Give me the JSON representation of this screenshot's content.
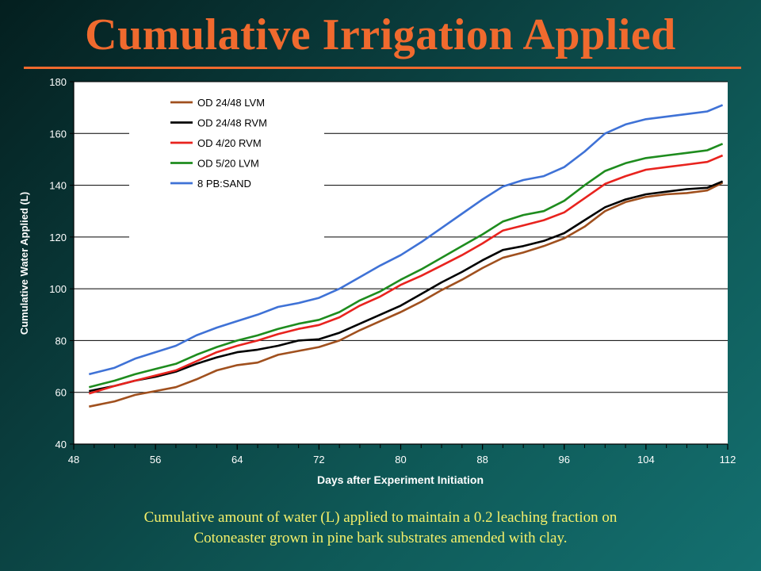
{
  "slide": {
    "title": "Cumulative Irrigation Applied",
    "caption_line1": "Cumulative amount of water (L) applied to maintain a 0.2 leaching fraction on",
    "caption_line2": "Cotoneaster grown in pine bark substrates amended with clay."
  },
  "colors": {
    "title": "#f06a2e",
    "caption": "#f5f06a",
    "plot_bg": "#ffffff",
    "gridline": "#000000"
  },
  "chart_data": {
    "type": "line",
    "title": "",
    "xlabel": "Days after Experiment Initiation",
    "ylabel": "Cumulative Water Applied (L)",
    "xlim": [
      48,
      112
    ],
    "ylim": [
      40,
      180
    ],
    "xticks": [
      48,
      56,
      64,
      72,
      80,
      88,
      96,
      104,
      112
    ],
    "yticks": [
      40,
      60,
      80,
      100,
      120,
      140,
      160,
      180
    ],
    "grid": "horizontal",
    "legend_position": "top-left",
    "x": [
      49.5,
      52,
      54,
      56,
      58,
      60,
      62,
      64,
      66,
      68,
      70,
      72,
      74,
      76,
      78,
      80,
      82,
      84,
      86,
      88,
      90,
      92,
      94,
      96,
      98,
      100,
      102,
      104,
      106,
      108,
      110,
      111.5
    ],
    "series": [
      {
        "name": "OD 24/48 LVM",
        "color": "#a0501e",
        "values": [
          54.5,
          56.5,
          59,
          60.5,
          62,
          65,
          68.5,
          70.5,
          71.5,
          74.5,
          76,
          77.5,
          80,
          84,
          87.5,
          91,
          95,
          99.5,
          103.5,
          108,
          112,
          114,
          116.5,
          119.5,
          124,
          130,
          133.5,
          135.5,
          136.5,
          137,
          138,
          141
        ]
      },
      {
        "name": "OD 24/48 RVM",
        "color": "#000000",
        "values": [
          60.5,
          62.5,
          64.5,
          66,
          68,
          71,
          73.5,
          75.5,
          76.5,
          78,
          80,
          80.5,
          83,
          86.5,
          90,
          93.5,
          98,
          102.5,
          106.5,
          111,
          115,
          116.5,
          118.5,
          121.5,
          126.5,
          131.5,
          134.5,
          136.5,
          137.5,
          138.5,
          139,
          141.5
        ]
      },
      {
        "name": "OD 4/20 RVM",
        "color": "#e8231e",
        "values": [
          59.5,
          62.5,
          64.5,
          66.5,
          68.5,
          72,
          75.5,
          78,
          80,
          82.5,
          84.5,
          86,
          89,
          93.5,
          97,
          101.5,
          105,
          109,
          113,
          117.5,
          122.5,
          124.5,
          126.5,
          129.5,
          135,
          140.5,
          143.5,
          146,
          147,
          148,
          149,
          151.5
        ]
      },
      {
        "name": "OD 5/20 LVM",
        "color": "#1e8c1e",
        "values": [
          62,
          64.5,
          67,
          69,
          71,
          74.5,
          77.5,
          80,
          82,
          84.5,
          86.5,
          88,
          91,
          95.5,
          99,
          103.5,
          107.5,
          112,
          116.5,
          121,
          126,
          128.5,
          130,
          134,
          140,
          145.5,
          148.5,
          150.5,
          151.5,
          152.5,
          153.5,
          156
        ]
      },
      {
        "name": "8 PB:SAND",
        "color": "#3f72d6",
        "values": [
          67,
          69.5,
          73,
          75.5,
          78,
          82,
          85,
          87.5,
          90,
          93,
          94.5,
          96.5,
          100,
          104.5,
          109,
          113,
          118,
          123.5,
          129,
          134.5,
          139.5,
          142,
          143.5,
          147,
          153,
          160,
          163.5,
          165.5,
          166.5,
          167.5,
          168.5,
          171
        ]
      }
    ]
  }
}
